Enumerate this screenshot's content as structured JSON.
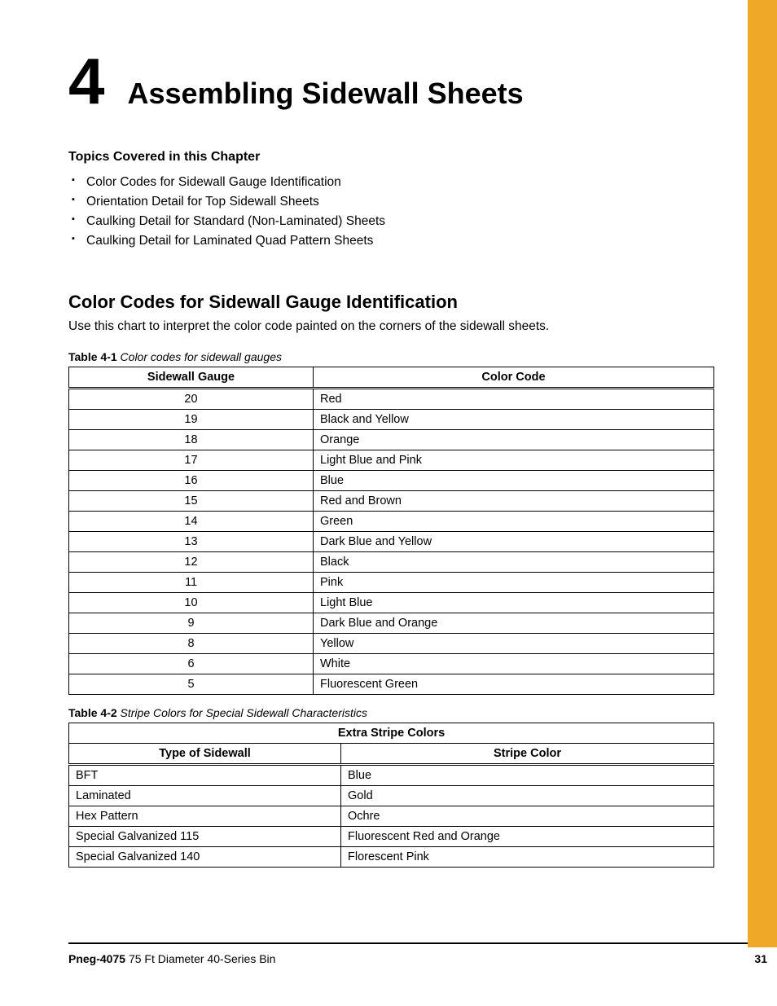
{
  "chapter": {
    "number": "4",
    "title": "Assembling Sidewall Sheets"
  },
  "topics_heading": "Topics Covered in this Chapter",
  "topics": [
    "Color Codes for Sidewall Gauge Identification",
    "Orientation Detail for Top Sidewall Sheets",
    "Caulking Detail for Standard (Non-Laminated) Sheets",
    "Caulking Detail for Laminated Quad Pattern Sheets"
  ],
  "section": {
    "heading": "Color Codes for Sidewall Gauge Identification",
    "intro": "Use this chart to interpret the color code painted on the corners of the sidewall sheets."
  },
  "table1": {
    "caption_bold": "Table 4-1",
    "caption_ital": "Color codes for sidewall gauges",
    "columns": [
      "Sidewall Gauge",
      "Color Code"
    ],
    "rows": [
      [
        "20",
        "Red"
      ],
      [
        "19",
        "Black and Yellow"
      ],
      [
        "18",
        "Orange"
      ],
      [
        "17",
        "Light Blue and Pink"
      ],
      [
        "16",
        "Blue"
      ],
      [
        "15",
        "Red and Brown"
      ],
      [
        "14",
        "Green"
      ],
      [
        "13",
        "Dark Blue and Yellow"
      ],
      [
        "12",
        "Black"
      ],
      [
        "11",
        "Pink"
      ],
      [
        "10",
        "Light Blue"
      ],
      [
        "9",
        "Dark Blue and Orange"
      ],
      [
        "8",
        "Yellow"
      ],
      [
        "6",
        "White"
      ],
      [
        "5",
        "Fluorescent Green"
      ]
    ]
  },
  "table2": {
    "caption_bold": "Table 4-2",
    "caption_ital": "Stripe Colors for Special Sidewall Characteristics",
    "super_header": "Extra Stripe Colors",
    "columns": [
      "Type of Sidewall",
      "Stripe Color"
    ],
    "rows": [
      [
        "BFT",
        "Blue"
      ],
      [
        "Laminated",
        "Gold"
      ],
      [
        "Hex Pattern",
        "Ochre"
      ],
      [
        "Special Galvanized 115",
        "Fluorescent Red and Orange"
      ],
      [
        "Special Galvanized 140",
        "Florescent Pink"
      ]
    ]
  },
  "footer": {
    "doc_id": "Pneg-4075",
    "doc_title": "75 Ft Diameter 40-Series Bin",
    "page": "31"
  },
  "colors": {
    "tab": "#f0a829",
    "text": "#000000",
    "background": "#ffffff"
  }
}
